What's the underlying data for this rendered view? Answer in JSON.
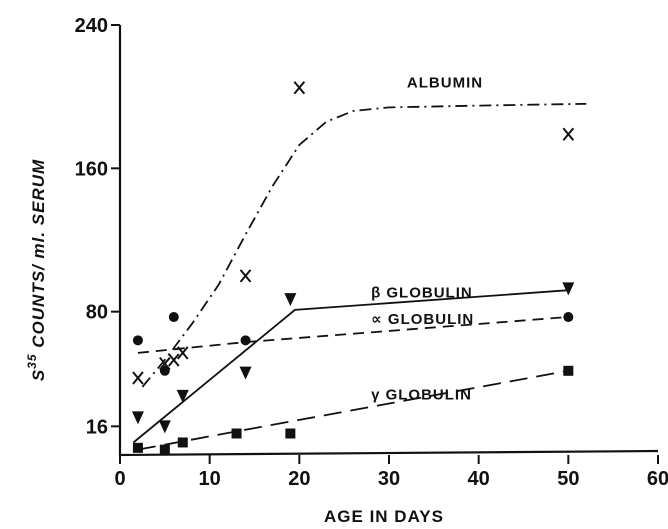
{
  "chart_data": {
    "type": "scatter",
    "xlabel": "AGE IN DAYS",
    "ylabel_main": "S",
    "ylabel_sup": "35",
    "ylabel_rest": " COUNTS/ ml. SERUM",
    "xlim": [
      0,
      60
    ],
    "ylim": [
      0,
      240
    ],
    "x_ticks": [
      0,
      10,
      20,
      30,
      40,
      50,
      60
    ],
    "y_ticks": [
      16,
      80,
      160,
      240
    ],
    "grid": false,
    "series": [
      {
        "name": "ALBUMIN",
        "marker": "x",
        "points": [
          [
            2,
            43
          ],
          [
            5,
            51
          ],
          [
            6,
            53
          ],
          [
            7,
            57
          ],
          [
            14,
            100
          ],
          [
            20,
            205
          ],
          [
            50,
            179
          ]
        ],
        "fit_style": "dash-dot",
        "fit": [
          [
            2.5,
            38
          ],
          [
            5,
            53
          ],
          [
            8,
            73
          ],
          [
            11,
            95
          ],
          [
            14,
            123
          ],
          [
            17,
            150
          ],
          [
            20,
            173
          ],
          [
            23,
            186
          ],
          [
            26,
            192
          ],
          [
            30,
            194
          ],
          [
            40,
            195
          ],
          [
            52,
            196
          ]
        ]
      },
      {
        "name": "β GLOBULIN",
        "marker": "triangle-down",
        "points": [
          [
            2,
            21
          ],
          [
            5,
            16
          ],
          [
            7,
            33
          ],
          [
            14,
            46
          ],
          [
            19,
            87
          ],
          [
            50,
            93
          ]
        ],
        "fit_style": "solid",
        "fit": [
          [
            1.5,
            7
          ],
          [
            19.5,
            81
          ],
          [
            50,
            92
          ]
        ]
      },
      {
        "name": "∝ GLOBULIN",
        "marker": "circle",
        "points": [
          [
            2,
            64
          ],
          [
            5,
            47
          ],
          [
            6,
            77
          ],
          [
            14,
            64
          ],
          [
            50,
            77
          ]
        ],
        "fit_style": "dashed",
        "fit": [
          [
            2,
            57
          ],
          [
            14,
            63
          ],
          [
            50,
            77
          ]
        ]
      },
      {
        "name": "γ GLOBULIN",
        "marker": "square",
        "points": [
          [
            2,
            4
          ],
          [
            5,
            3
          ],
          [
            7,
            7
          ],
          [
            13,
            12
          ],
          [
            19,
            12
          ],
          [
            50,
            47
          ]
        ],
        "fit_style": "long-dash",
        "fit": [
          [
            2,
            3
          ],
          [
            15,
            15
          ],
          [
            50,
            47
          ]
        ]
      }
    ],
    "series_label_text": [
      {
        "name": "ALBUMIN",
        "at": [
          32,
          205
        ]
      },
      {
        "name": "β GLOBULIN",
        "at": [
          28,
          88
        ]
      },
      {
        "name": "∝ GLOBULIN",
        "at": [
          28,
          73
        ]
      },
      {
        "name": "γ GLOBULIN",
        "at": [
          28,
          31
        ]
      }
    ]
  }
}
